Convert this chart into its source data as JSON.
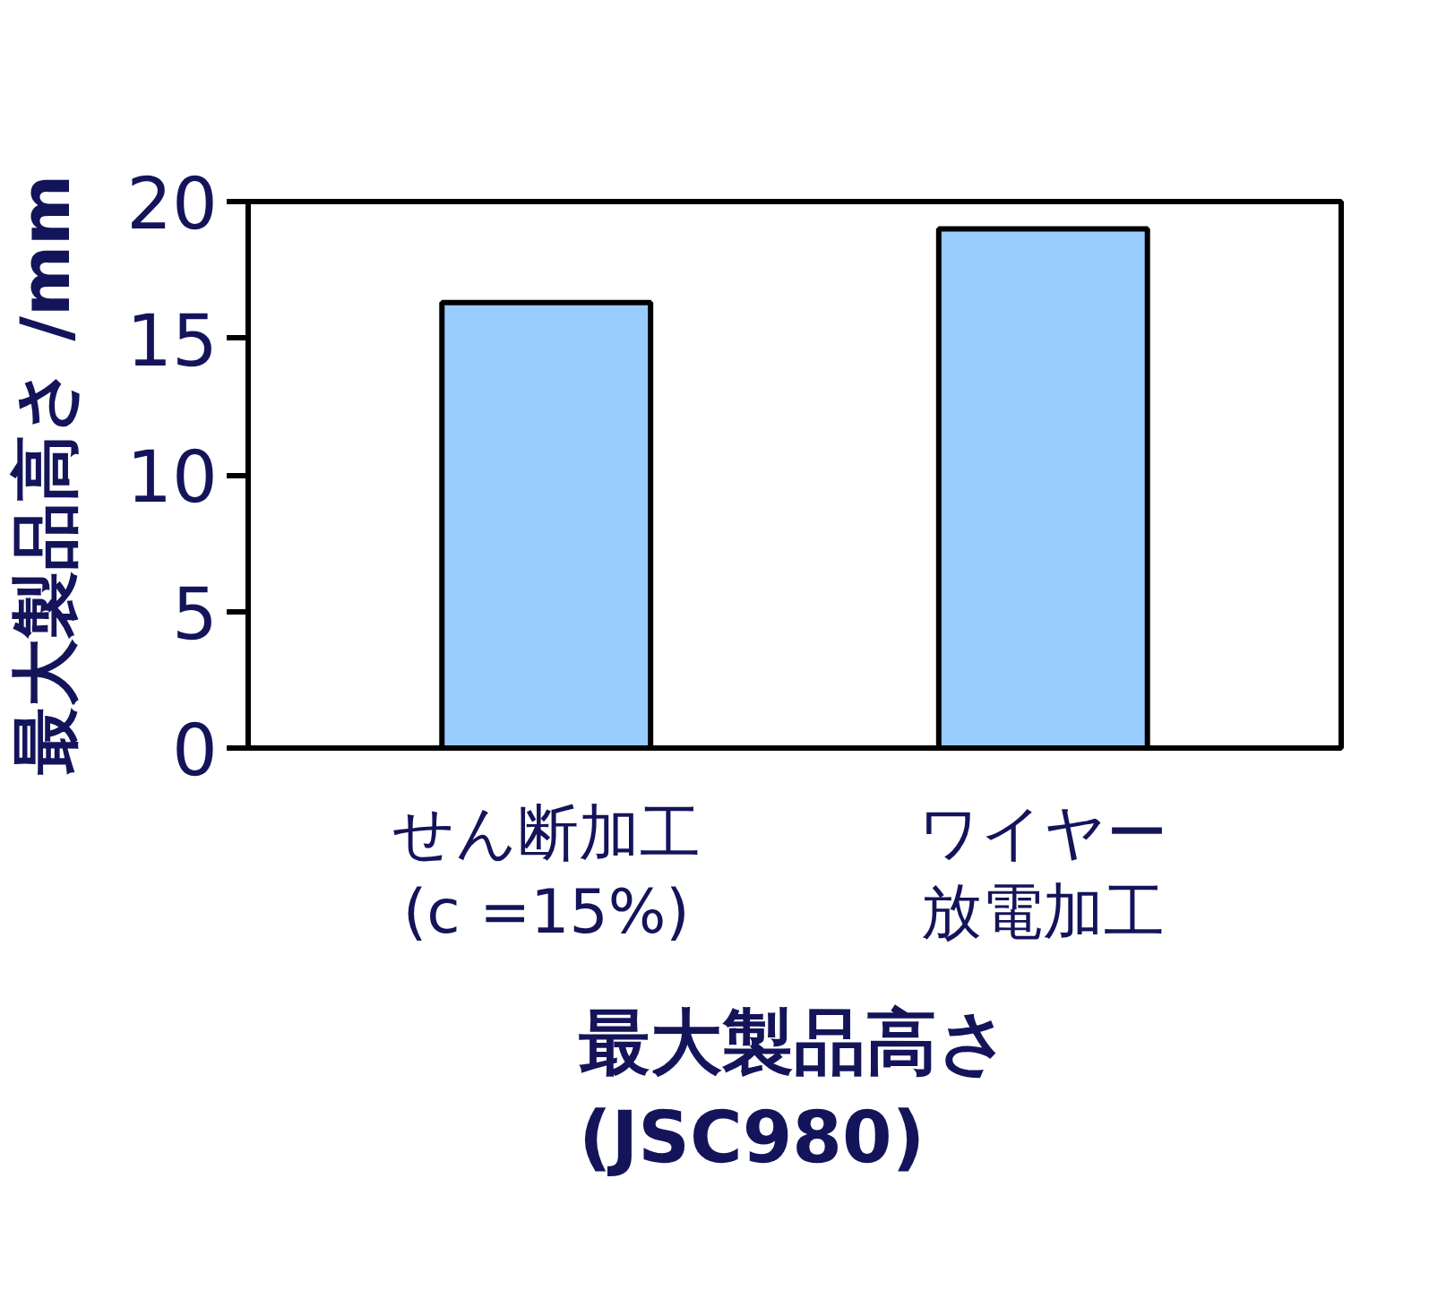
{
  "chart_data": {
    "type": "bar",
    "title": "最大製品高さ\n(JSC980)",
    "ylabel": "最大製品高さ /mm",
    "categories": [
      "せん断加工\n(c =15%)",
      "ワイヤー放電加工"
    ],
    "values": [
      16.3,
      19.0
    ],
    "color": "#99ccff",
    "ylim": [
      0,
      20
    ],
    "yticks": [
      0,
      5,
      10,
      15,
      20
    ],
    "grid": false
  }
}
